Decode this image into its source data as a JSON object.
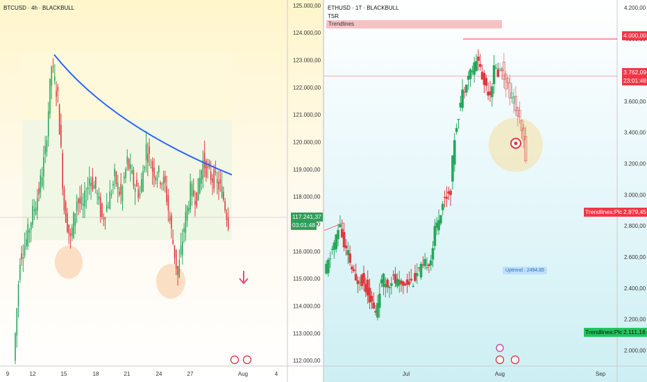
{
  "left": {
    "symbol": "BTCUSD · 4h · BLACKBULL",
    "price_label": "117.241,37",
    "countdown": "03:01:48",
    "colors": {
      "up": "#26a65b",
      "down": "#e0383e",
      "trend": "#2962ff",
      "tag": "#2e9e5a"
    }
  },
  "right": {
    "symbol": "ETHUSD · 1T · BLACKBULL",
    "indicator_tsr": "TSR",
    "indicator_trendlines": "Trendlines",
    "price_label": "3.762,09",
    "countdown": "23:01:48",
    "level_label": "4.000,00",
    "trend_plot_upper_label": "Trendlines:Plot",
    "trend_plot_upper_value": "2.879,45",
    "trend_plot_lower_label": "Trendlines:Plot",
    "trend_plot_lower_value": "2.111,16",
    "uptrend_label": "Uptrend : 2494.85",
    "colors": {
      "up": "#26a65b",
      "down": "#e0383e",
      "resistance": "#f23645",
      "support_tag": "#22c55e"
    }
  },
  "chart_data": [
    {
      "type": "line",
      "title": "BTCUSD · 4h · BLACKBULL",
      "y_axis_ticks": [
        112000,
        113000,
        114000,
        115000,
        116000,
        117000,
        118000,
        119000,
        120000,
        121000,
        122000,
        123000,
        124000,
        125000
      ],
      "y_axis_labels": [
        "112.000,00",
        "113.000,00",
        "114.000,00",
        "115.000,00",
        "116.000,00",
        "117.000,00",
        "118.000,00",
        "119.000,00",
        "120.000,00",
        "121.000,00",
        "122.000,00",
        "123.000,00",
        "124.000,00",
        "125.000,00"
      ],
      "x_axis_labels": [
        "9",
        "12",
        "15",
        "18",
        "21",
        "24",
        "27",
        "Aug",
        "4"
      ],
      "ylim": [
        111800,
        125200
      ],
      "current_price": 117241.37,
      "series": [
        {
          "values": [
            112000,
            115800,
            116400,
            117400,
            118200,
            119600,
            122800,
            121600,
            117600,
            116400,
            117900,
            117600,
            118700,
            118300,
            117200,
            117800,
            118700,
            118000,
            119300,
            118500,
            118100,
            119800,
            119000,
            118800,
            118400,
            116700,
            115100,
            116900,
            118200,
            118000,
            119300,
            118800,
            118600,
            118200,
            117100
          ]
        }
      ],
      "descending_trendline": {
        "from": 123200,
        "to": 118800
      }
    },
    {
      "type": "line",
      "title": "ETHUSD · 1T · BLACKBULL",
      "y_axis_ticks": [
        2000,
        2200,
        2400,
        2600,
        2800,
        3000,
        3200,
        3400,
        3600,
        3800,
        4000,
        4200
      ],
      "y_axis_labels": [
        "2.000,00",
        "2.200,00",
        "2.400,00",
        "2.600,00",
        "2.800,00",
        "3.000,00",
        "3.200,00",
        "3.400,00",
        "3.600,00",
        "3.800,00",
        "4.000,00",
        "4.200,00"
      ],
      "x_axis_labels": [
        "Jul",
        "Aug",
        "Sep"
      ],
      "ylim": [
        1900,
        4250
      ],
      "current_price": 3762.09,
      "resistance_level": 4000,
      "series": [
        {
          "values": [
            2480,
            2560,
            2650,
            2720,
            2820,
            2650,
            2610,
            2520,
            2430,
            2480,
            2430,
            2390,
            2300,
            2230,
            2400,
            2450,
            2420,
            2470,
            2440,
            2420,
            2430,
            2450,
            2440,
            2470,
            2510,
            2520,
            2570,
            2590,
            2760,
            2860,
            2950,
            3000,
            3040,
            3380,
            3530,
            3650,
            3750,
            3790,
            3820,
            3880,
            3740,
            3700,
            3660,
            3800,
            3790,
            3810,
            3720,
            3660,
            3600,
            3510,
            3400,
            3260
          ]
        }
      ],
      "uptrend_value": 2494.85
    }
  ]
}
